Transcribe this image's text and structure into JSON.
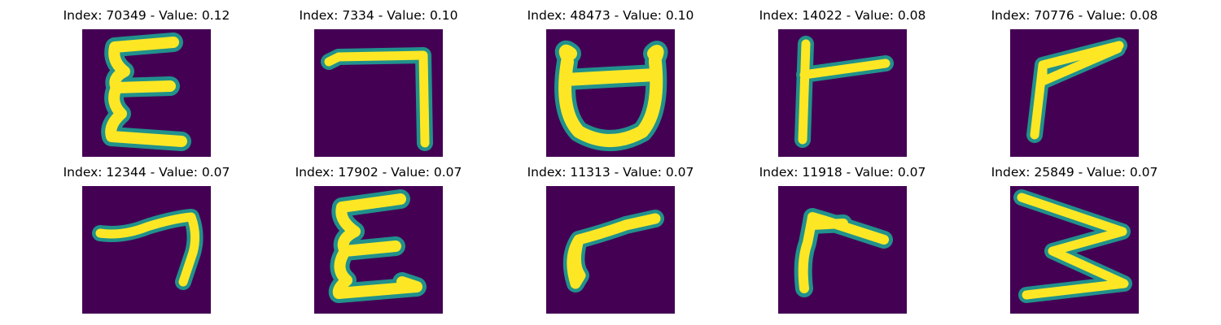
{
  "colors": {
    "background": "#440154",
    "glow": "#21918c",
    "stroke": "#fde725",
    "title_text": "#000000"
  },
  "panels": [
    {
      "title": "Index: 70349 - Value: 0.12",
      "glyph": "epsilon-3"
    },
    {
      "title": "Index: 7334 - Value: 0.10",
      "glyph": "seven-corner"
    },
    {
      "title": "Index: 48473 - Value: 0.10",
      "glyph": "bowl"
    },
    {
      "title": "Index: 14022 - Value: 0.08",
      "glyph": "reverse-gamma"
    },
    {
      "title": "Index: 70776 - Value: 0.08",
      "glyph": "slanted-gamma"
    },
    {
      "title": "Index: 12344 - Value: 0.07",
      "glyph": "hook-seven"
    },
    {
      "title": "Index: 17902 - Value: 0.07",
      "glyph": "epsilon-3"
    },
    {
      "title": "Index: 11313 - Value: 0.07",
      "glyph": "reverse-gamma-curved"
    },
    {
      "title": "Index: 11918 - Value: 0.07",
      "glyph": "arrow-gamma"
    },
    {
      "title": "Index: 25849 - Value: 0.07",
      "glyph": "zigzag-three"
    }
  ]
}
